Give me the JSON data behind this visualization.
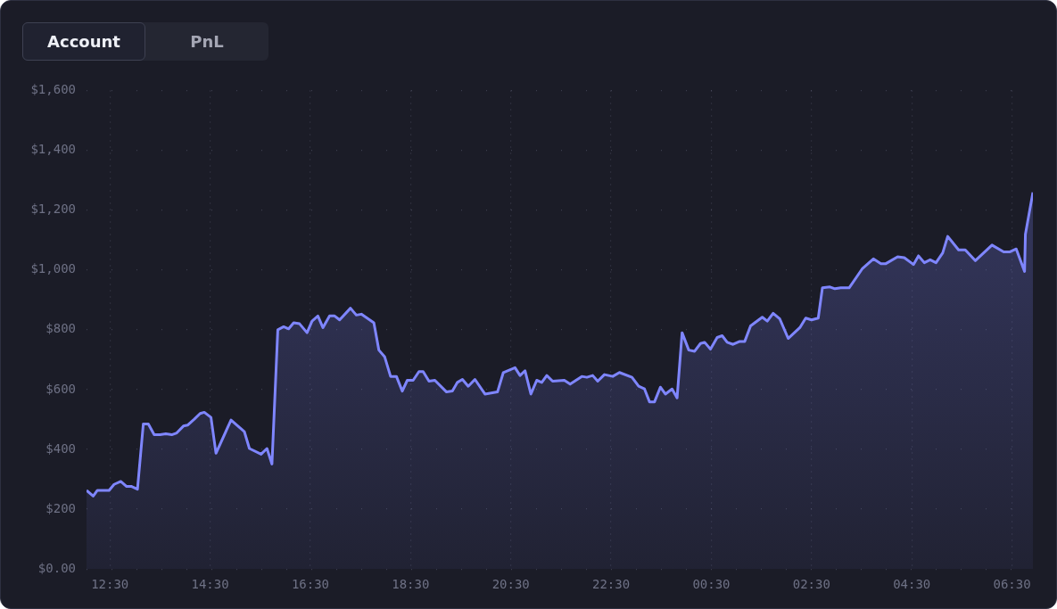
{
  "chart_data": {
    "type": "area",
    "annotations": [
      "Account",
      "PnL"
    ],
    "x": [
      "--01-01T12:02",
      "--01-01T12:10",
      "--01-01T12:15",
      "--01-01T12:29",
      "--01-01T12:35",
      "--01-01T12:43",
      "--01-01T12:50",
      "--01-01T12:56",
      "--01-01T13:03",
      "--01-01T13:10",
      "--01-01T13:16",
      "--01-01T13:23",
      "--01-01T13:30",
      "--01-01T13:37",
      "--01-01T13:44",
      "--01-01T13:50",
      "--01-01T13:58",
      "--01-01T14:03",
      "--01-01T14:11",
      "--01-01T14:18",
      "--01-01T14:23",
      "--01-01T14:31",
      "--01-01T14:37",
      "--01-01T14:55",
      "--01-01T15:11",
      "--01-01T15:17",
      "--01-01T15:31",
      "--01-01T15:38",
      "--01-01T15:44",
      "--01-01T15:51",
      "--01-01T15:58",
      "--01-01T16:04",
      "--01-01T16:10",
      "--01-01T16:17",
      "--01-01T16:26",
      "--01-01T16:32",
      "--01-01T16:39",
      "--01-01T16:45",
      "--01-01T16:53",
      "--01-01T16:59",
      "--01-01T17:05",
      "--01-01T17:18",
      "--01-01T17:25",
      "--01-01T17:31",
      "--01-01T17:46",
      "--01-01T17:52",
      "--01-01T17:59",
      "--01-01T18:06",
      "--01-01T18:13",
      "--01-01T18:20",
      "--01-01T18:26",
      "--01-01T18:33",
      "--01-01T18:40",
      "--01-01T18:45",
      "--01-01T18:52",
      "--01-01T18:59",
      "--01-01T19:13",
      "--01-01T19:20",
      "--01-01T19:26",
      "--01-01T19:32",
      "--01-01T19:39",
      "--01-01T19:47",
      "--01-01T19:59",
      "--01-01T20:14",
      "--01-01T20:21",
      "--01-01T20:35",
      "--01-01T20:41",
      "--01-01T20:47",
      "--01-01T20:54",
      "--01-01T21:01",
      "--01-01T21:07",
      "--01-01T21:13",
      "--01-01T21:20",
      "--01-01T21:34",
      "--01-01T21:41",
      "--01-01T21:55",
      "--01-01T22:01",
      "--01-01T22:08",
      "--01-01T22:14",
      "--01-01T22:22",
      "--01-01T22:32",
      "--01-01T22:40",
      "--01-01T22:55",
      "--01-01T23:03",
      "--01-01T23:10",
      "--01-01T23:16",
      "--01-01T23:22",
      "--01-01T23:29",
      "--01-01T23:35",
      "--01-01T23:43",
      "--01-01T23:49",
      "--01-01T23:55",
      "--01-02T00:03",
      "--01-02T00:10",
      "--01-02T00:17",
      "--01-02T00:22",
      "--01-02T00:29",
      "--01-02T00:37",
      "--01-02T00:43",
      "--01-02T00:49",
      "--01-02T00:56",
      "--01-02T01:04",
      "--01-02T01:10",
      "--01-02T01:17",
      "--01-02T01:31",
      "--01-02T01:37",
      "--01-02T01:44",
      "--01-02T01:52",
      "--01-02T02:02",
      "--01-02T02:16",
      "--01-02T02:23",
      "--01-02T02:30",
      "--01-02T02:38",
      "--01-02T02:43",
      "--01-02T02:52",
      "--01-02T02:58",
      "--01-02T03:05",
      "--01-02T03:15",
      "--01-02T03:31",
      "--01-02T03:44",
      "--01-02T03:53",
      "--01-02T03:59",
      "--01-02T04:13",
      "--01-02T04:21",
      "--01-02T04:32",
      "--01-02T04:38",
      "--01-02T04:45",
      "--01-02T04:52",
      "--01-02T04:59",
      "--01-02T05:07",
      "--01-02T05:13",
      "--01-02T05:26",
      "--01-02T05:34",
      "--01-02T05:46",
      "--01-02T06:06",
      "--01-02T06:20",
      "--01-02T06:27",
      "--01-02T06:35",
      "--01-02T06:45",
      "--01-02T06:46",
      "--01-02T06:55"
    ],
    "series": [
      {
        "color": "#7f86ff",
        "values": [
          263,
          244,
          263,
          263,
          283,
          293,
          276,
          276,
          267,
          485,
          485,
          449,
          449,
          452,
          449,
          455,
          478,
          481,
          501,
          520,
          524,
          507,
          387,
          498,
          459,
          403,
          384,
          403,
          351,
          800,
          810,
          803,
          823,
          820,
          790,
          829,
          846,
          807,
          846,
          846,
          833,
          872,
          849,
          852,
          823,
          732,
          709,
          644,
          644,
          595,
          631,
          631,
          660,
          660,
          628,
          631,
          592,
          595,
          624,
          634,
          611,
          634,
          585,
          592,
          657,
          673,
          647,
          663,
          585,
          631,
          624,
          647,
          628,
          631,
          618,
          644,
          641,
          647,
          628,
          650,
          644,
          657,
          641,
          611,
          602,
          559,
          559,
          608,
          585,
          602,
          572,
          790,
          732,
          728,
          754,
          758,
          735,
          774,
          780,
          758,
          751,
          761,
          761,
          813,
          842,
          829,
          855,
          836,
          771,
          807,
          839,
          833,
          839,
          940,
          943,
          937,
          940,
          940,
          1005,
          1037,
          1021,
          1021,
          1044,
          1041,
          1018,
          1047,
          1024,
          1034,
          1024,
          1057,
          1112,
          1067,
          1067,
          1031,
          1083,
          1060,
          1060,
          1070,
          995,
          1119,
          1259
        ]
      }
    ],
    "xlim": [
      "--01-01T12:02",
      "--01-02T06:55"
    ],
    "xticks": [
      {
        "value": "--01-01T12:30",
        "label": "12:30"
      },
      {
        "value": "--01-01T14:30",
        "label": "14:30"
      },
      {
        "value": "--01-01T16:30",
        "label": "16:30"
      },
      {
        "value": "--01-01T18:30",
        "label": "18:30"
      },
      {
        "value": "--01-01T20:30",
        "label": "20:30"
      },
      {
        "value": "--01-01T22:30",
        "label": "22:30"
      },
      {
        "value": "--01-02T00:30",
        "label": "00:30"
      },
      {
        "value": "--01-02T02:30",
        "label": "02:30"
      },
      {
        "value": "--01-02T04:30",
        "label": "04:30"
      },
      {
        "value": "--01-02T06:30",
        "label": "06:30"
      }
    ],
    "ylim": [
      0,
      1600
    ],
    "yticks": [
      {
        "value": 0,
        "label": "$0.00"
      },
      {
        "value": 200,
        "label": "$200"
      },
      {
        "value": 400,
        "label": "$400"
      },
      {
        "value": 600,
        "label": "$600"
      },
      {
        "value": 800,
        "label": "$800"
      },
      {
        "value": 1000,
        "label": "$1,000"
      },
      {
        "value": 1200,
        "label": "$1,200"
      },
      {
        "value": 1400,
        "label": "$1,400"
      },
      {
        "value": 1600,
        "label": "$1,600"
      }
    ],
    "grid": true,
    "legend": false
  }
}
